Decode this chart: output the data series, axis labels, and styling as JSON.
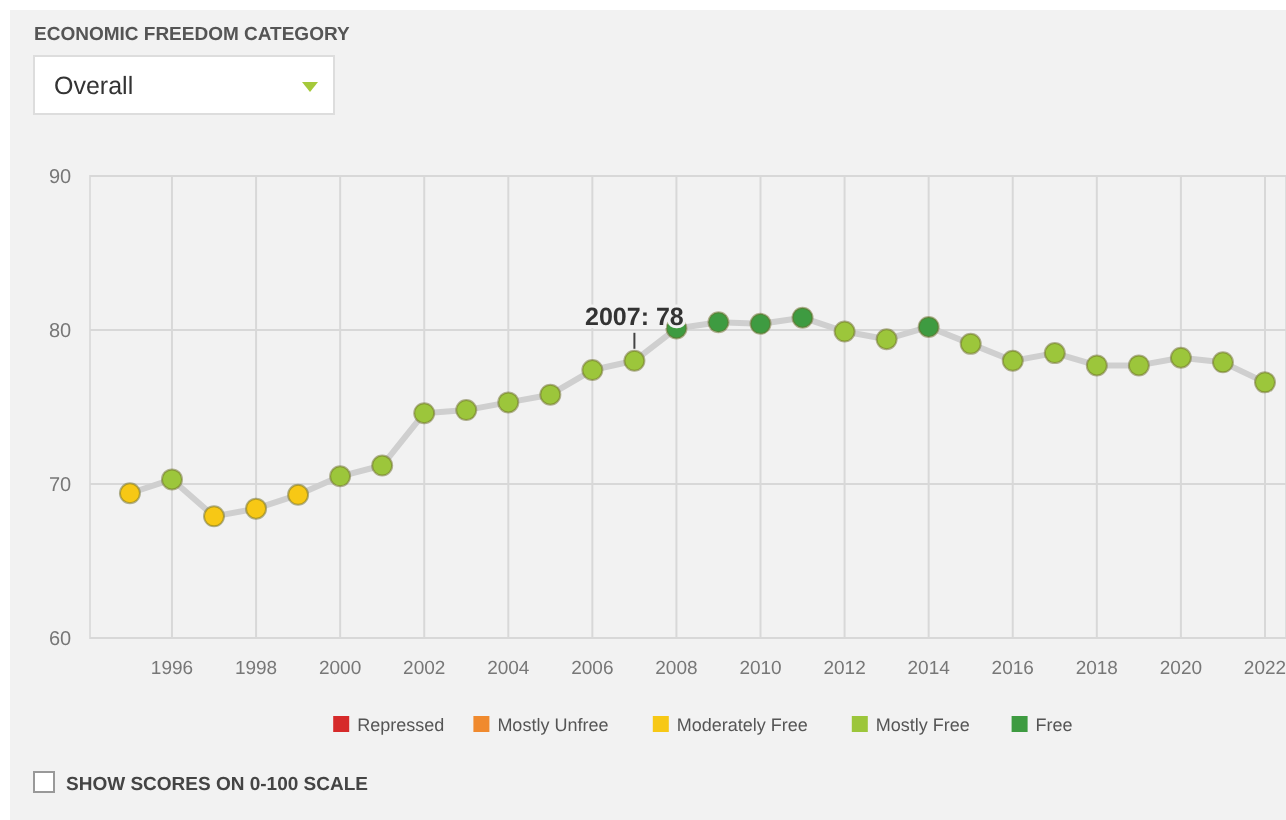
{
  "chart_data": {
    "type": "line",
    "x": [
      1995,
      1996,
      1997,
      1998,
      1999,
      2000,
      2001,
      2002,
      2003,
      2004,
      2005,
      2006,
      2007,
      2008,
      2009,
      2010,
      2011,
      2012,
      2013,
      2014,
      2015,
      2016,
      2017,
      2018,
      2019,
      2020,
      2021,
      2022
    ],
    "series": [
      {
        "type": "line",
        "color": "#cfcfcf",
        "marker": "none",
        "values": [
          69.4,
          70.3,
          67.9,
          68.4,
          69.3,
          70.5,
          71.2,
          74.6,
          74.8,
          75.3,
          75.8,
          77.4,
          78,
          80.1,
          80.5,
          80.4,
          80.8,
          79.9,
          79.4,
          80.2,
          79.1,
          78.0,
          78.5,
          77.7,
          77.7,
          78.2,
          77.9,
          76.6
        ]
      },
      {
        "type": "scatter",
        "name": "Repressed",
        "color": "#d62a2a",
        "values": [
          null,
          null,
          null,
          null,
          null,
          null,
          null,
          null,
          null,
          null,
          null,
          null,
          null,
          null,
          null,
          null,
          null,
          null,
          null,
          null,
          null,
          null,
          null,
          null,
          null,
          null,
          null,
          null
        ]
      },
      {
        "type": "scatter",
        "name": "Mostly Unfree",
        "color": "#f08a2e",
        "values": [
          null,
          null,
          null,
          null,
          null,
          null,
          null,
          null,
          null,
          null,
          null,
          null,
          null,
          null,
          null,
          null,
          null,
          null,
          null,
          null,
          null,
          null,
          null,
          null,
          null,
          null,
          null,
          null
        ]
      },
      {
        "type": "scatter",
        "name": "Moderately Free",
        "color": "#f7c815",
        "values": [
          69.4,
          null,
          67.9,
          68.4,
          69.3,
          null,
          null,
          null,
          null,
          null,
          null,
          null,
          null,
          null,
          null,
          null,
          null,
          null,
          null,
          null,
          null,
          null,
          null,
          null,
          null,
          null,
          null,
          null
        ]
      },
      {
        "type": "scatter",
        "name": "Mostly Free",
        "color": "#9cc63b",
        "values": [
          null,
          70.3,
          null,
          null,
          null,
          70.5,
          71.2,
          74.6,
          74.8,
          75.3,
          75.8,
          77.4,
          78,
          null,
          null,
          null,
          null,
          79.9,
          79.4,
          null,
          79.1,
          78.0,
          78.5,
          77.7,
          77.7,
          78.2,
          77.9,
          76.6
        ]
      },
      {
        "type": "scatter",
        "name": "Free",
        "color": "#3e9b41",
        "values": [
          null,
          null,
          null,
          null,
          null,
          null,
          null,
          null,
          null,
          null,
          null,
          null,
          null,
          80.1,
          80.5,
          80.4,
          80.8,
          null,
          null,
          80.2,
          null,
          null,
          null,
          null,
          null,
          null,
          null,
          null
        ]
      }
    ],
    "xlim": [
      1994.05,
      2022.5
    ],
    "xticks": [
      1996,
      1998,
      2000,
      2002,
      2004,
      2006,
      2008,
      2010,
      2012,
      2014,
      2016,
      2018,
      2020,
      2022
    ],
    "ylim": [
      60,
      90
    ],
    "yticks": [
      60,
      70,
      80,
      90
    ],
    "grid": true,
    "legend": "bottom",
    "marker": "circle",
    "annotations": [
      {
        "text": "2007: 78",
        "x": 2007,
        "y": 78
      },
      "ECONOMIC FREEDOM CATEGORY",
      "Overall",
      "SHOW SCORES ON 0-100 SCALE"
    ]
  }
}
